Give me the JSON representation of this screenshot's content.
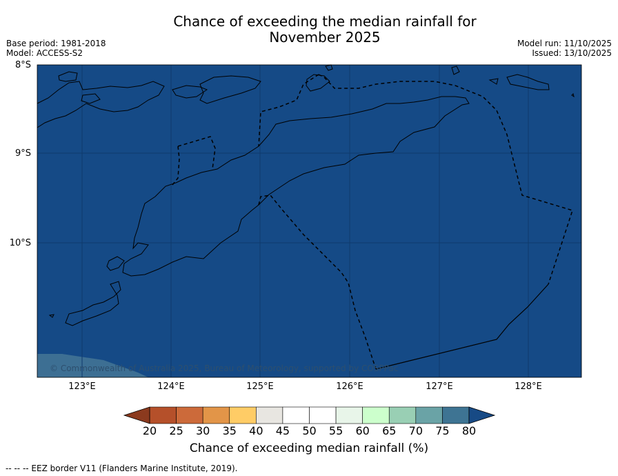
{
  "title_line1": "Chance of exceeding the median rainfall for",
  "title_line2": "November 2025",
  "meta_left": [
    "Base period: 1981-2018",
    "Model: ACCESS-S2"
  ],
  "meta_right": [
    "Model run: 11/10/2025",
    "Issued: 13/10/2025"
  ],
  "lat_labels": [
    "8°S",
    "9°S",
    "10°S"
  ],
  "lon_labels": [
    "123°E",
    "124°E",
    "125°E",
    "126°E",
    "127°E",
    "128°E"
  ],
  "credit": "© Commonwealth of Australia 2025, Bureau of Meteorology, supported by COSPPac",
  "colorbar": {
    "label": "Chance of exceeding median rainfall (%)",
    "ticks": [
      "20",
      "25",
      "30",
      "35",
      "40",
      "45",
      "50",
      "55",
      "60",
      "65",
      "70",
      "75",
      "80"
    ],
    "colors": [
      "#b5502a",
      "#cc6a3a",
      "#e29548",
      "#ffcc66",
      "#e8e6e1",
      "#ffffff",
      "#ffffff",
      "#e8f5e9",
      "#ccffcc",
      "#99cfb4",
      "#6aa3a6",
      "#3e7493"
    ],
    "under_color": "#8b3a1e",
    "over_color": "#174a85"
  },
  "map_colors": {
    "ocean": "#154a86",
    "land_fill": "#154a86",
    "lower_left": "#3d6f93"
  },
  "footnote": "-- -- -- EEZ border V11 (Flanders Marine Institute, 2019)."
}
